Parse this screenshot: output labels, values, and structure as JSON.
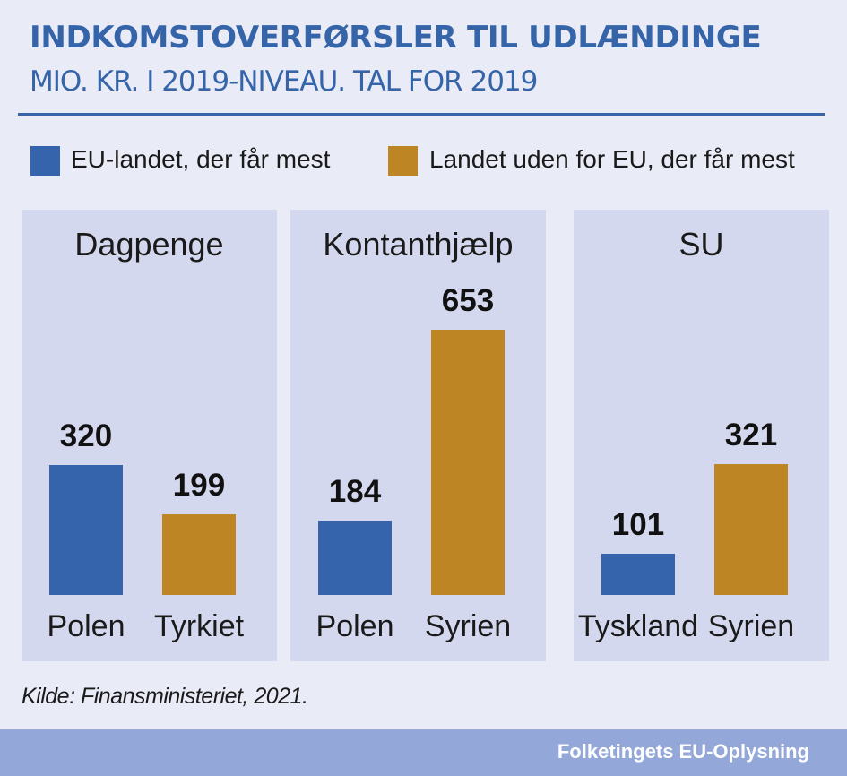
{
  "chart_data": {
    "type": "bar",
    "title": "INDKOMSTOVERFØRSLER TIL UDLÆNDINGE",
    "subtitle": "MIO. KR. I 2019-NIVEAU. TAL FOR 2019",
    "ylim": [
      0,
      700
    ],
    "legend": {
      "placement": "top",
      "items": [
        {
          "label": "EU-landet, der får mest",
          "color": "#3664ac"
        },
        {
          "label": "Landet uden for EU, der får mest",
          "color": "#bd8524"
        }
      ]
    },
    "panels": [
      {
        "title": "Dagpenge",
        "categories": [
          "Polen",
          "Tyrkiet"
        ],
        "values": [
          320,
          199
        ]
      },
      {
        "title": "Kontanthjælp",
        "categories": [
          "Polen",
          "Syrien"
        ],
        "values": [
          184,
          653
        ]
      },
      {
        "title": "SU",
        "categories": [
          "Tyskland",
          "Syrien"
        ],
        "values": [
          101,
          321
        ]
      }
    ],
    "source": "Kilde: Finansministeriet, 2021.",
    "grid": false
  },
  "footer": {
    "brand": "Folketingets EU-Oplysning"
  },
  "colors": {
    "eu": "#3664ac",
    "non_eu": "#bd8524",
    "title": "#3565a8",
    "panel": "#d4d8ee",
    "footer": "#93a7d8"
  }
}
